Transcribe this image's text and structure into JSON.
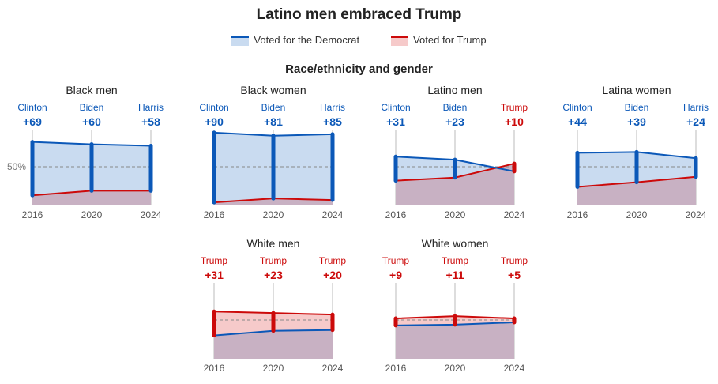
{
  "title": "Latino men embraced Trump",
  "legend": {
    "dem": "Voted for the Democrat",
    "rep": "Voted for Trump"
  },
  "subtitle": "Race/ethnicity and gender",
  "colors": {
    "dem": "#0b58b8",
    "rep": "#cc0a0a",
    "demFill": "#c9dbf0",
    "repFill": "#f6caca",
    "overlap": "#c8b1c3"
  },
  "chart_data": {
    "type": "area",
    "ref_label": "50%",
    "ylim": [
      0,
      100
    ],
    "years": [
      "2016",
      "2020",
      "2024"
    ],
    "panels": [
      {
        "title": "Black men",
        "candidates": [
          "Clinton",
          "Biden",
          "Harris"
        ],
        "margins": [
          "+69",
          "+60",
          "+58"
        ],
        "dem": [
          82,
          79,
          77
        ],
        "rep": [
          13,
          19,
          19
        ]
      },
      {
        "title": "Black women",
        "candidates": [
          "Clinton",
          "Biden",
          "Harris"
        ],
        "margins": [
          "+90",
          "+81",
          "+85"
        ],
        "dem": [
          94,
          90,
          92
        ],
        "rep": [
          4,
          9,
          7
        ]
      },
      {
        "title": "Latino men",
        "candidates": [
          "Clinton",
          "Biden",
          "Trump"
        ],
        "margins": [
          "+31",
          "+23",
          "+10"
        ],
        "dem": [
          63,
          59,
          44
        ],
        "rep": [
          32,
          36,
          54
        ]
      },
      {
        "title": "Latina women",
        "candidates": [
          "Clinton",
          "Biden",
          "Harris"
        ],
        "margins": [
          "+44",
          "+39",
          "+24"
        ],
        "dem": [
          68,
          69,
          61
        ],
        "rep": [
          24,
          30,
          37
        ]
      },
      {
        "title": "White men",
        "candidates": [
          "Trump",
          "Trump",
          "Trump"
        ],
        "margins": [
          "+31",
          "+23",
          "+20"
        ],
        "dem": [
          30,
          36,
          37
        ],
        "rep": [
          61,
          59,
          57
        ]
      },
      {
        "title": "White women",
        "candidates": [
          "Trump",
          "Trump",
          "Trump"
        ],
        "margins": [
          "+9",
          "+11",
          "+5"
        ],
        "dem": [
          43,
          44,
          47
        ],
        "rep": [
          52,
          55,
          52
        ]
      }
    ]
  }
}
